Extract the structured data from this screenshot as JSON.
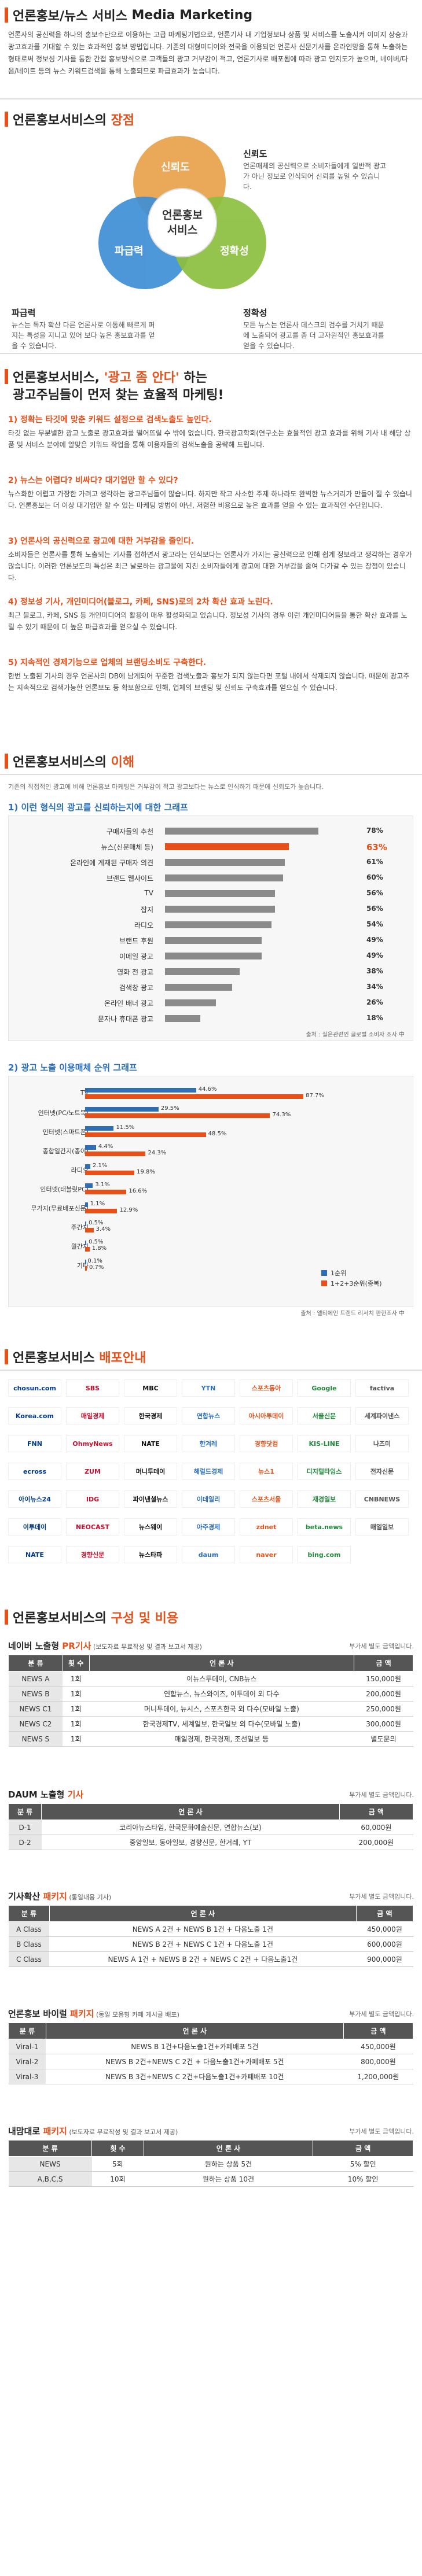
{
  "sec1": {
    "title_a": "언론홍보/뉴스 서비스",
    "title_b": "Media Marketing",
    "para": "언론사의 공신력을 하나의 홍보수단으로 이용하는 고급 마케팅기법으로, 언론기사 내 기업정보나 상품 및 서비스를 노출시켜 이미지 상승과 광고효과를 기대할 수 있는 효과적인 홍보 방법입니다. 기존의 대형미디어와 전국을 이용되던 언론사 신문기사를 온라인망을 통해 노출하는 형태로써 정보성 기사를 통한 간접 홍보방식으로 고객들의 광고 거부감이 적고, 언론기사로 배포됨에 따라 광고 인지도가 높으며, 네이버/다음/네이트 등의 뉴스 키워드검색을 통해 노출되므로 파급효과가 높습니다."
  },
  "sec2": {
    "title_a": "언론홍보서비스의",
    "title_b": "장점",
    "center": "언론홍보\n서비스",
    "c1": "신뢰도",
    "c2": "파급력",
    "c3": "정확성",
    "l1": "신뢰도",
    "t1": "언론매체의 공신력으로 소비자들에게 일반적 광고가 아닌 정보로 인식되어 신뢰를 높일 수 있습니다.",
    "l2": "파급력",
    "t2": "뉴스는 독자 확산 다른 언론사로 이동해 빠르게 퍼지는 특성을 지니고 있어 보다 높은 홍보효과를 얻을 수 있습니다.",
    "l3": "정확성",
    "t3": "모든 뉴스는 언론사 데스크의 검수를 거치기 때문에 노출되어 광고를 좀 더 고자원적인 홍보효과를 얻을 수 있습니다."
  },
  "sec3": {
    "title_a": "언론홍보서비스,",
    "title_hl": "'광고 좀 안다'",
    "title_b": "하는",
    "title_c": "광고주님들이 먼저 찾는 효율적 마케팅!",
    "qa": [
      {
        "q": "1) 정확는 타깃에 맞춘 키워드 설정으로 검색노출도 높인다.",
        "a": "타깃 없는 무분별한 광고 노출로 광고효과를 떨어뜨릴 수 밖에 없습니다. 한국광고학회(연구소는 효율적인 광고 효과를 위해 기사 내 해당 상품 및 서비스 분야에 알맞은 키워드 작업을 통해 이용자들의 검색노출을 공략해 드립니다."
      },
      {
        "q": "2) 뉴스는 어렵다? 비싸다? 대기업만 할 수 있다?",
        "a": "뉴스화한 어렵고 가장한 가려고 생각하는 광고주님들이 많습니다. 하지만 작고 사소한 주제 하나라도 완벽한 뉴스거리가 만들어 질 수 있습니다. 언론홍보는 더 이상 대기업만 할 수 있는 마케팅 방법이 아닌, 저렴한 비용으로 높은 효과를 얻을 수 있는 효과적인 수단입니다."
      },
      {
        "q": "3) 언론사의 공신력으로 광고에 대한 거부감을 줄인다.",
        "a": "소비자들은 언론사를 통해 노출되는 기사를 접하면서 광고라는 인식보다는 언론사가 가지는 공신력으로 인해 쉽게 정보라고 생각하는 경우가 많습니다. 이러한 언론보도의 특성은 최근 날로하는 광고물에 지친 소비자들에게 광고에 대한 거부감을 줄여 다가갈 수 있는 장점이 있습니다."
      },
      {
        "q": "4) 정보성 기사, 개인미디어(블로그, 카페, SNS)로의 2차 확산 효과 노린다.",
        "a": "최근 블로그, 카페, SNS 등 개인미디어의 활용이 매우 활성화되고 있습니다. 정보성 기사의 경우 이런 개인미디어들을 통한 확산 효과를 노릴 수 있기 때문에 더 높은 파급효과를 얻으실 수 있습니다."
      },
      {
        "q": "5) 지속적인 경제기능으로 업체의 브랜딩소비도 구축한다.",
        "a": "한번 노출된 기사의 경우 언론사의 DB에 남게되어 꾸준한 검색노출과 홍보가 되지 않는다면 포털 내에서 삭제되지 않습니다. 때문에 광고주는 지속적으로 검색가능한 언론보도 등 확보함으로 인해, 업체의 브랜딩 및 신뢰도 구축효과를 얻으실 수 있습니다."
      }
    ]
  },
  "sec4": {
    "title_a": "언론홍보서비스의",
    "title_b": "이해",
    "intro": "기존의 직접적인 광고에 비해 언론홍보 마케팅은 거부감이 적고 광고보다는 뉴스로 인식하기 때문에 신뢰도가 높습니다.",
    "chart1_sub": "1) 이런 형식의 광고를 신뢰하는지에 대한 그래프",
    "chart1_source": "출처 : 실은관련인 글로벌 소비자 조사 中",
    "chart2_sub": "2) 광고 노출 이용매체 순위 그래프",
    "chart2_source": "출처 : 엘티에인 트랜드 리서치 판한조사 中",
    "legend1": "1순위",
    "legend2": "1+2+3순위(종복)"
  },
  "chart_data": [
    {
      "type": "bar",
      "categories": [
        "구매자들의 추천",
        "뉴스(신문매체 등)",
        "온라인에 게재된 구매자 의견",
        "브랜드 웹사이트",
        "TV",
        "잡지",
        "라디오",
        "브랜드 후원",
        "이메일 광고",
        "영화 전 광고",
        "검색창 광고",
        "온라인 배너 광고",
        "문자나 휴대폰 광고"
      ],
      "values": [
        78,
        63,
        61,
        60,
        56,
        56,
        54,
        49,
        49,
        38,
        34,
        26,
        18
      ],
      "unit": "%",
      "highlight": 1
    },
    {
      "type": "bar",
      "categories": [
        "TV",
        "인터넷(PC/노트북)",
        "인터넷(스마트폰)",
        "종합일간지(종이)",
        "라디오",
        "인터넷(태블릿PC)",
        "무가지(무료배포신문)",
        "주간지",
        "월간지",
        "기타"
      ],
      "series": [
        {
          "name": "1순위",
          "values": [
            44.6,
            29.5,
            11.5,
            4.4,
            2.1,
            3.1,
            1.1,
            0.5,
            0.5,
            0.1
          ]
        },
        {
          "name": "1+2+3순위(종복)",
          "values": [
            87.7,
            74.3,
            48.5,
            24.3,
            19.8,
            16.6,
            12.9,
            3.4,
            1.8,
            0.7
          ]
        }
      ],
      "colors": [
        "#2f6db5",
        "#e8501a"
      ]
    }
  ],
  "sec5": {
    "title_a": "언론홍보서비스",
    "title_b": "배포안내",
    "logos": [
      "chosun.com",
      "SBS",
      "MBC",
      "YTN",
      "스포츠동아",
      "Google",
      "factiva",
      "Korea.com",
      "매일경제",
      "한국경제",
      "연합뉴스",
      "아시아투데이",
      "서울신문",
      "세계파이낸스",
      "FNN",
      "OhmyNews",
      "NATE",
      "한겨레",
      "경향닷컴",
      "KIS-LINE",
      "나즈미",
      "ecross",
      "ZUM",
      "머니투데이",
      "헤럴드경제",
      "뉴스1",
      "디지털타임스",
      "전자신문",
      "아이뉴스24",
      "IDG",
      "파이낸셜뉴스",
      "이데일리",
      "스포츠서울",
      "재경일보",
      "CNBNEWS",
      "이투데이",
      "NEOCAST",
      "뉴스웨이",
      "아주경제",
      "zdnet",
      "beta.news",
      "매일일보",
      "NATE",
      "경향신문",
      "뉴스타파",
      "daum",
      "naver",
      "bing.com"
    ]
  },
  "sec6": {
    "title_a": "언론홍보서비스의",
    "title_b": "구성 및 비용",
    "vat": "부가세 별도 금액입니다.",
    "tables": [
      {
        "title": "네이버 노출형",
        "title_hl": "PR기사",
        "sub": "(보도자료 무료작성 및 결과 보고서 제공)",
        "headers": [
          "분 류",
          "횟 수",
          "언 론 사",
          "금 액"
        ],
        "rows": [
          [
            "NEWS A",
            "1회",
            "이뉴스투데이, CNB뉴스",
            "150,000원"
          ],
          [
            "NEWS B",
            "1회",
            "연합뉴스, 뉴스와이즈, 이투데이 외 다수",
            "200,000원"
          ],
          [
            "NEWS C1",
            "1회",
            "머니투데이, 뉴시스, 스포츠한국 외 다수(모바일 노출)",
            "250,000원"
          ],
          [
            "NEWS C2",
            "1회",
            "한국경제TV, 세계일보, 한국일보 외 다수(모바일 노출)",
            "300,000원"
          ],
          [
            "NEWS S",
            "1회",
            "매일경제, 한국경제, 조선일보 등",
            "별도문의"
          ]
        ]
      },
      {
        "title": "DAUM 노출형",
        "title_hl": "기사",
        "sub": "",
        "headers": [
          "분 류",
          "언 론 사",
          "금 액"
        ],
        "rows": [
          [
            "D-1",
            "코리아뉴스타임, 한국문화예술신문, 연합뉴스(보)",
            "60,000원"
          ],
          [
            "D-2",
            "중앙일보, 동아일보, 경향신문, 한겨레, YT",
            "200,000원"
          ]
        ]
      },
      {
        "title": "기사확산",
        "title_hl": "패키지",
        "sub": "(통일내용 기사)",
        "headers": [
          "분 류",
          "언 론 사",
          "금 액"
        ],
        "rows": [
          [
            "A Class",
            "NEWS A 2건 + NEWS B 1건 + 다음노출 1건",
            "450,000원"
          ],
          [
            "B Class",
            "NEWS B 2건 + NEWS C 1건 + 다음노출 1건",
            "600,000원"
          ],
          [
            "C Class",
            "NEWS A 1건 + NEWS B 2건 + NEWS C 2건 + 다음노출1건",
            "900,000원"
          ]
        ]
      },
      {
        "title": "언론홍보 바이럴",
        "title_hl": "패키지",
        "sub": "(동일 모음형 카페 게시글 배포)",
        "headers": [
          "분 류",
          "언 론 사",
          "금 액"
        ],
        "rows": [
          [
            "Viral-1",
            "NEWS B 1건+다음노출1건+카페배포 5건",
            "450,000원"
          ],
          [
            "Viral-2",
            "NEWS B 2건+NEWS C 2건 + 다음노출1건+카페배포 5건",
            "800,000원"
          ],
          [
            "Viral-3",
            "NEWS B 3건+NEWS C 2건+다음노출1건+카페배포 10건",
            "1,200,000원"
          ]
        ]
      },
      {
        "title": "내맘대로",
        "title_hl": "패키지",
        "sub": "(보도자료 무료작성 및 결과 보고서 제공)",
        "headers": [
          "분 류",
          "횟 수",
          "언 론 사",
          "금 액"
        ],
        "rows": [
          [
            "NEWS",
            "5회",
            "원하는 상품 5건",
            "5% 할인"
          ],
          [
            "A,B,C,S",
            "10회",
            "원하는 상품 10건",
            "10% 할인"
          ]
        ]
      }
    ]
  }
}
